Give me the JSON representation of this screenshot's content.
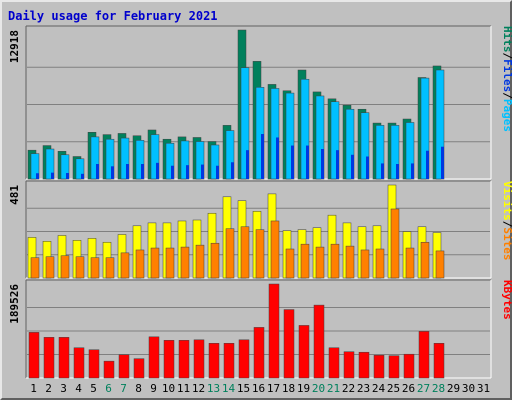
{
  "colors": {
    "frame": "#c0c0c0",
    "grid": "#808080",
    "title": "#0000cc",
    "hits": "#00805c",
    "files": "#00c0ff",
    "pages": "#0038e0",
    "visits": "#ffff00",
    "sites": "#ff8000",
    "kbytes": "#ff0000",
    "weekend_day": "#00805c",
    "weekday": "#000000"
  },
  "chart_data": {
    "type": "bar",
    "title": "Daily usage for February 2021",
    "categories": [
      "1",
      "2",
      "3",
      "4",
      "5",
      "6",
      "7",
      "8",
      "9",
      "10",
      "11",
      "12",
      "13",
      "14",
      "15",
      "16",
      "17",
      "18",
      "19",
      "20",
      "21",
      "22",
      "23",
      "24",
      "25",
      "26",
      "27",
      "28",
      "29",
      "30",
      "31"
    ],
    "weekend_days": [
      "6",
      "7",
      "13",
      "14",
      "20",
      "21",
      "27",
      "28"
    ],
    "panels": [
      {
        "id": "hits",
        "max_label": "12918",
        "ylim": [
          0,
          12918
        ],
        "legend": [
          "Pages",
          "/",
          "Files",
          "/",
          "Hits"
        ],
        "legend_colors": [
          "#00c0ff",
          "#000000",
          "#0038e0",
          "#000000",
          "#00805c"
        ],
        "series": [
          {
            "name": "Hits",
            "values": [
              2500,
              2900,
              2400,
              1950,
              4050,
              3850,
              3950,
              3750,
              4250,
              3450,
              3650,
              3600,
              3250,
              4650,
              12918,
              10200,
              8200,
              7650,
              9450,
              7550,
              6950,
              6400,
              6050,
              4850,
              4850,
              5200,
              8800,
              9800,
              0,
              0,
              0
            ]
          },
          {
            "name": "Files",
            "values": [
              2200,
              2600,
              2100,
              1750,
              3650,
              3450,
              3550,
              3350,
              3850,
              3100,
              3300,
              3250,
              2950,
              4200,
              9650,
              7950,
              7850,
              7450,
              8650,
              7200,
              6700,
              6050,
              5750,
              4650,
              4650,
              4900,
              8750,
              9450,
              0,
              0,
              0
            ]
          },
          {
            "name": "Pages",
            "values": [
              500,
              550,
              520,
              450,
              1300,
              1100,
              1300,
              1300,
              1400,
              1150,
              1200,
              1250,
              1150,
              1450,
              2500,
              3900,
              3600,
              2900,
              2900,
              2600,
              2500,
              2100,
              1950,
              1350,
              1300,
              1350,
              2450,
              2800,
              0,
              0,
              0
            ]
          }
        ]
      },
      {
        "id": "visits",
        "max_label": "481",
        "ylim": [
          0,
          481
        ],
        "legend": [
          "Sites",
          "/",
          "Visits"
        ],
        "legend_colors": [
          "#ff8000",
          "#000000",
          "#ffff00"
        ],
        "series": [
          {
            "name": "Visits",
            "values": [
              210,
              190,
              220,
              195,
              205,
              185,
              225,
              270,
              285,
              285,
              295,
              300,
              335,
              420,
              400,
              345,
              435,
              245,
              250,
              260,
              325,
              285,
              265,
              270,
              481,
              240,
              265,
              235,
              0,
              0,
              0
            ]
          },
          {
            "name": "Sites",
            "values": [
              105,
              110,
              115,
              110,
              105,
              105,
              130,
              145,
              155,
              155,
              160,
              170,
              180,
              255,
              265,
              250,
              295,
              150,
              175,
              160,
              175,
              165,
              145,
              150,
              357,
              155,
              185,
              140,
              0,
              0,
              0
            ]
          }
        ]
      },
      {
        "id": "kbytes",
        "max_label": "189526",
        "ylim": [
          0,
          189526
        ],
        "legend": [
          "KBytes"
        ],
        "legend_colors": [
          "#ff0000"
        ],
        "series": [
          {
            "name": "KBytes",
            "values": [
              92000,
              82000,
              82000,
              61000,
              57000,
              34000,
              47000,
              39000,
              83000,
              76000,
              76000,
              77000,
              70000,
              70000,
              77000,
              102000,
              189526,
              138000,
              106000,
              147000,
              61000,
              53000,
              52000,
              46000,
              45000,
              48000,
              94000,
              70000,
              0,
              0,
              0
            ]
          }
        ]
      }
    ]
  }
}
